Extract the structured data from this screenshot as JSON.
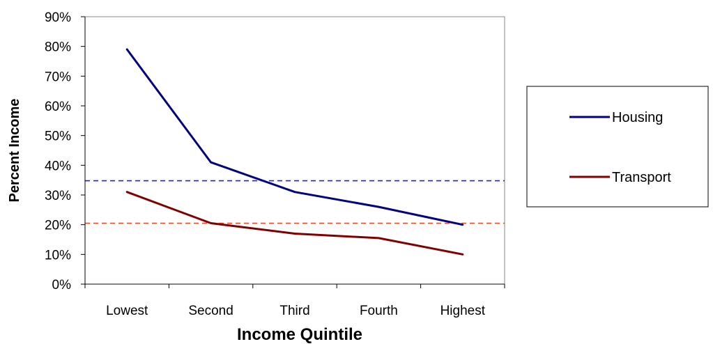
{
  "chart_data": {
    "type": "line",
    "title": "",
    "xlabel": "Income Quintile",
    "ylabel": "Percent Income",
    "categories": [
      "Lowest",
      "Second",
      "Third",
      "Fourth",
      "Highest"
    ],
    "ylim": [
      0,
      90
    ],
    "yticks": [
      0,
      10,
      20,
      30,
      40,
      50,
      60,
      70,
      80,
      90
    ],
    "ytick_labels": [
      "0%",
      "10%",
      "20%",
      "30%",
      "40%",
      "50%",
      "60%",
      "70%",
      "80%",
      "90%"
    ],
    "grid": false,
    "legend_position": "right",
    "series": [
      {
        "name": "Housing",
        "values": [
          79,
          41,
          31,
          26,
          20
        ],
        "color": "#000080"
      },
      {
        "name": "Transport",
        "values": [
          31,
          20.5,
          17,
          15.5,
          10
        ],
        "color": "#800000"
      }
    ],
    "reference_lines": [
      {
        "value": 34.8,
        "color": "#2020d0",
        "style": "dashed"
      },
      {
        "value": 20.5,
        "color": "#e0502a",
        "style": "dashed"
      }
    ]
  }
}
